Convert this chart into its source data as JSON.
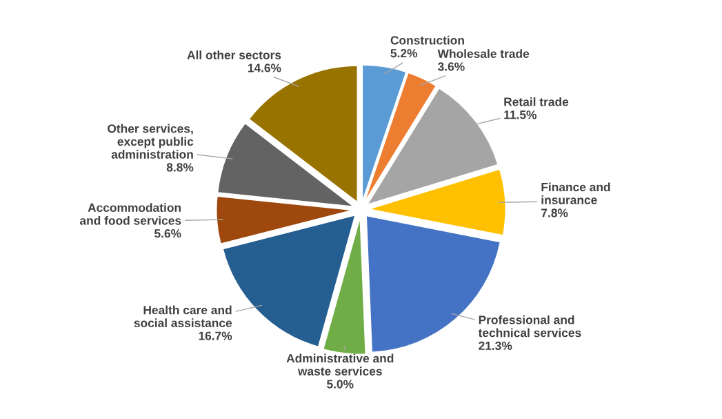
{
  "chart_data": {
    "type": "pie",
    "categories": [
      "Construction",
      "Wholesale trade",
      "Retail trade",
      "Finance and\ninsurance",
      "Professional and\ntechnical services",
      "Administrative and\nwaste services",
      "Health care and\nsocial assistance",
      "Accommodation\nand food services",
      "Other services,\nexcept public\nadministration",
      "All other sectors"
    ],
    "values": [
      5.2,
      3.6,
      11.5,
      7.8,
      21.3,
      5.0,
      16.7,
      5.6,
      8.8,
      14.6
    ],
    "value_labels": [
      "5.2%",
      "3.6%",
      "11.5%",
      "7.8%",
      "21.3%",
      "5.0%",
      "16.7%",
      "5.6%",
      "8.8%",
      "14.6%"
    ],
    "colors": [
      "#5b9bd5",
      "#ed7d31",
      "#a5a5a5",
      "#ffc000",
      "#4472c4",
      "#70ad47",
      "#255e91",
      "#9e480e",
      "#636363",
      "#997300"
    ],
    "legend": false
  }
}
